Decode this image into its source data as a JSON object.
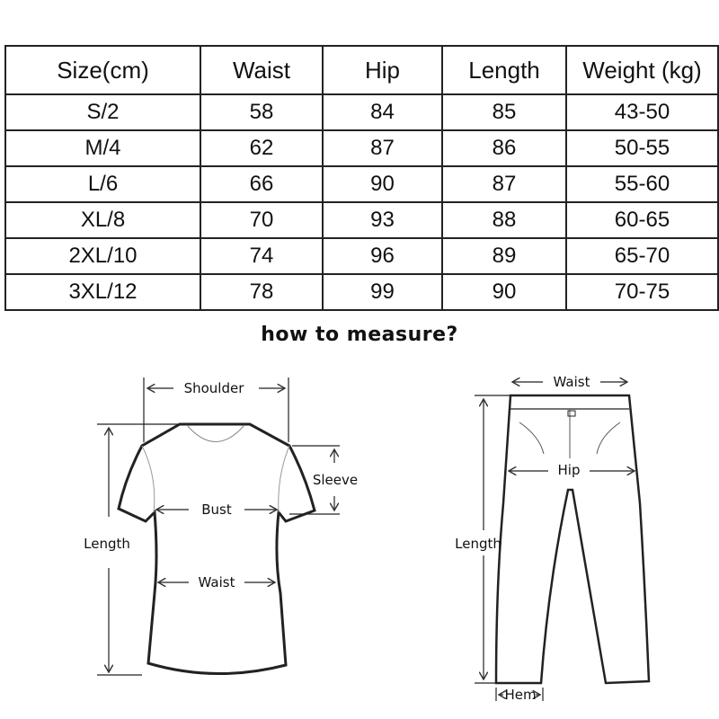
{
  "table": {
    "headers": [
      "Size(cm)",
      "Waist",
      "Hip",
      "Length",
      "Weight (kg)"
    ],
    "rows": [
      [
        "S/2",
        "58",
        "84",
        "85",
        "43-50"
      ],
      [
        "M/4",
        "62",
        "87",
        "86",
        "50-55"
      ],
      [
        "L/6",
        "66",
        "90",
        "87",
        "55-60"
      ],
      [
        "XL/8",
        "70",
        "93",
        "88",
        "60-65"
      ],
      [
        "2XL/10",
        "74",
        "96",
        "89",
        "65-70"
      ],
      [
        "3XL/12",
        "78",
        "99",
        "90",
        "70-75"
      ]
    ]
  },
  "heading": "how to measure?",
  "shirt": {
    "shoulder": "Shoulder",
    "sleeve": "Sleeve",
    "bust": "Bust",
    "length": "Length",
    "waist": "Waist"
  },
  "pants": {
    "waist": "Waist",
    "hip": "Hip",
    "length": "Length",
    "hem": "Hem"
  }
}
